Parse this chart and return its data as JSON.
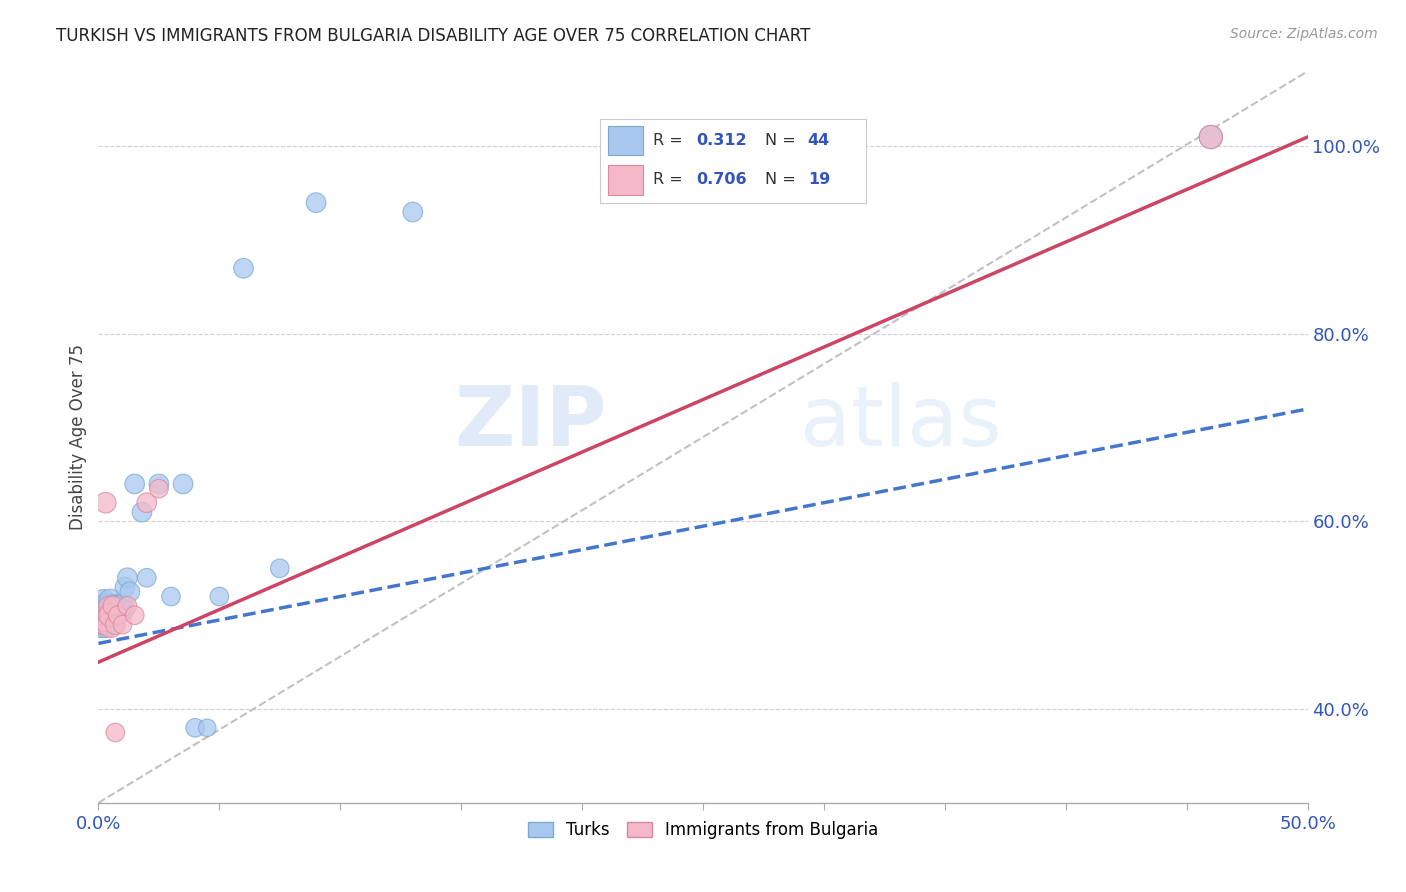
{
  "title": "TURKISH VS IMMIGRANTS FROM BULGARIA DISABILITY AGE OVER 75 CORRELATION CHART",
  "source": "Source: ZipAtlas.com",
  "ylabel": "Disability Age Over 75",
  "xlim": [
    0.0,
    0.5
  ],
  "ylim": [
    0.3,
    1.08
  ],
  "xtick_positions": [
    0.0,
    0.05,
    0.1,
    0.15,
    0.2,
    0.25,
    0.3,
    0.35,
    0.4,
    0.45,
    0.5
  ],
  "ytick_positions": [
    0.4,
    0.6,
    0.8,
    1.0
  ],
  "ytick_labels": [
    "40.0%",
    "60.0%",
    "80.0%",
    "100.0%"
  ],
  "turks_color": "#a8c8f0",
  "turks_edge_color": "#7aaad0",
  "bulgaria_color": "#f5b8c8",
  "bulgaria_edge_color": "#d888a0",
  "trendline_turks_color": "#4477cc",
  "trendline_bulgaria_color": "#cc4466",
  "legend_R_turks": "0.312",
  "legend_N_turks": "44",
  "legend_R_bulgaria": "0.706",
  "legend_N_bulgaria": "19",
  "watermark_zip": "ZIP",
  "watermark_atlas": "atlas",
  "background_color": "#ffffff",
  "grid_color": "#cccccc",
  "turks_x": [
    0.001,
    0.001,
    0.001,
    0.002,
    0.002,
    0.002,
    0.002,
    0.003,
    0.003,
    0.003,
    0.003,
    0.003,
    0.004,
    0.004,
    0.004,
    0.005,
    0.005,
    0.005,
    0.005,
    0.006,
    0.006,
    0.007,
    0.007,
    0.008,
    0.009,
    0.01,
    0.01,
    0.011,
    0.012,
    0.013,
    0.015,
    0.018,
    0.02,
    0.025,
    0.03,
    0.035,
    0.04,
    0.045,
    0.05,
    0.06,
    0.075,
    0.09,
    0.13,
    0.46
  ],
  "turks_y": [
    0.49,
    0.495,
    0.5,
    0.5,
    0.505,
    0.51,
    0.515,
    0.49,
    0.495,
    0.5,
    0.505,
    0.51,
    0.49,
    0.5,
    0.51,
    0.495,
    0.505,
    0.51,
    0.515,
    0.5,
    0.505,
    0.505,
    0.51,
    0.505,
    0.51,
    0.505,
    0.51,
    0.53,
    0.54,
    0.525,
    0.64,
    0.61,
    0.54,
    0.64,
    0.52,
    0.64,
    0.38,
    0.38,
    0.52,
    0.87,
    0.55,
    0.94,
    0.93,
    1.01
  ],
  "bulgaria_x": [
    0.001,
    0.002,
    0.002,
    0.003,
    0.003,
    0.004,
    0.004,
    0.005,
    0.005,
    0.006,
    0.007,
    0.007,
    0.008,
    0.01,
    0.012,
    0.015,
    0.02,
    0.025,
    0.46
  ],
  "bulgaria_y": [
    0.49,
    0.49,
    0.5,
    0.495,
    0.62,
    0.5,
    0.51,
    0.49,
    0.5,
    0.51,
    0.375,
    0.49,
    0.5,
    0.49,
    0.51,
    0.5,
    0.62,
    0.635,
    1.01
  ],
  "turks_sizes": [
    350,
    280,
    250,
    300,
    250,
    200,
    280,
    350,
    300,
    280,
    260,
    300,
    250,
    280,
    260,
    300,
    280,
    260,
    300,
    280,
    260,
    280,
    260,
    250,
    260,
    250,
    260,
    200,
    200,
    200,
    200,
    200,
    180,
    200,
    180,
    200,
    180,
    160,
    180,
    200,
    180,
    200,
    200,
    280
  ],
  "bulgaria_sizes": [
    200,
    200,
    180,
    280,
    220,
    200,
    180,
    350,
    280,
    200,
    180,
    200,
    180,
    180,
    180,
    180,
    200,
    180,
    280
  ],
  "trendline_turks_x0": 0.0,
  "trendline_turks_y0": 0.47,
  "trendline_turks_x1": 0.5,
  "trendline_turks_y1": 0.72,
  "trendline_bulgaria_x0": 0.0,
  "trendline_bulgaria_y0": 0.45,
  "trendline_bulgaria_x1": 0.5,
  "trendline_bulgaria_y1": 1.01,
  "refline_x0": 0.0,
  "refline_y0": 0.3,
  "refline_x1": 0.5,
  "refline_y1": 1.08
}
